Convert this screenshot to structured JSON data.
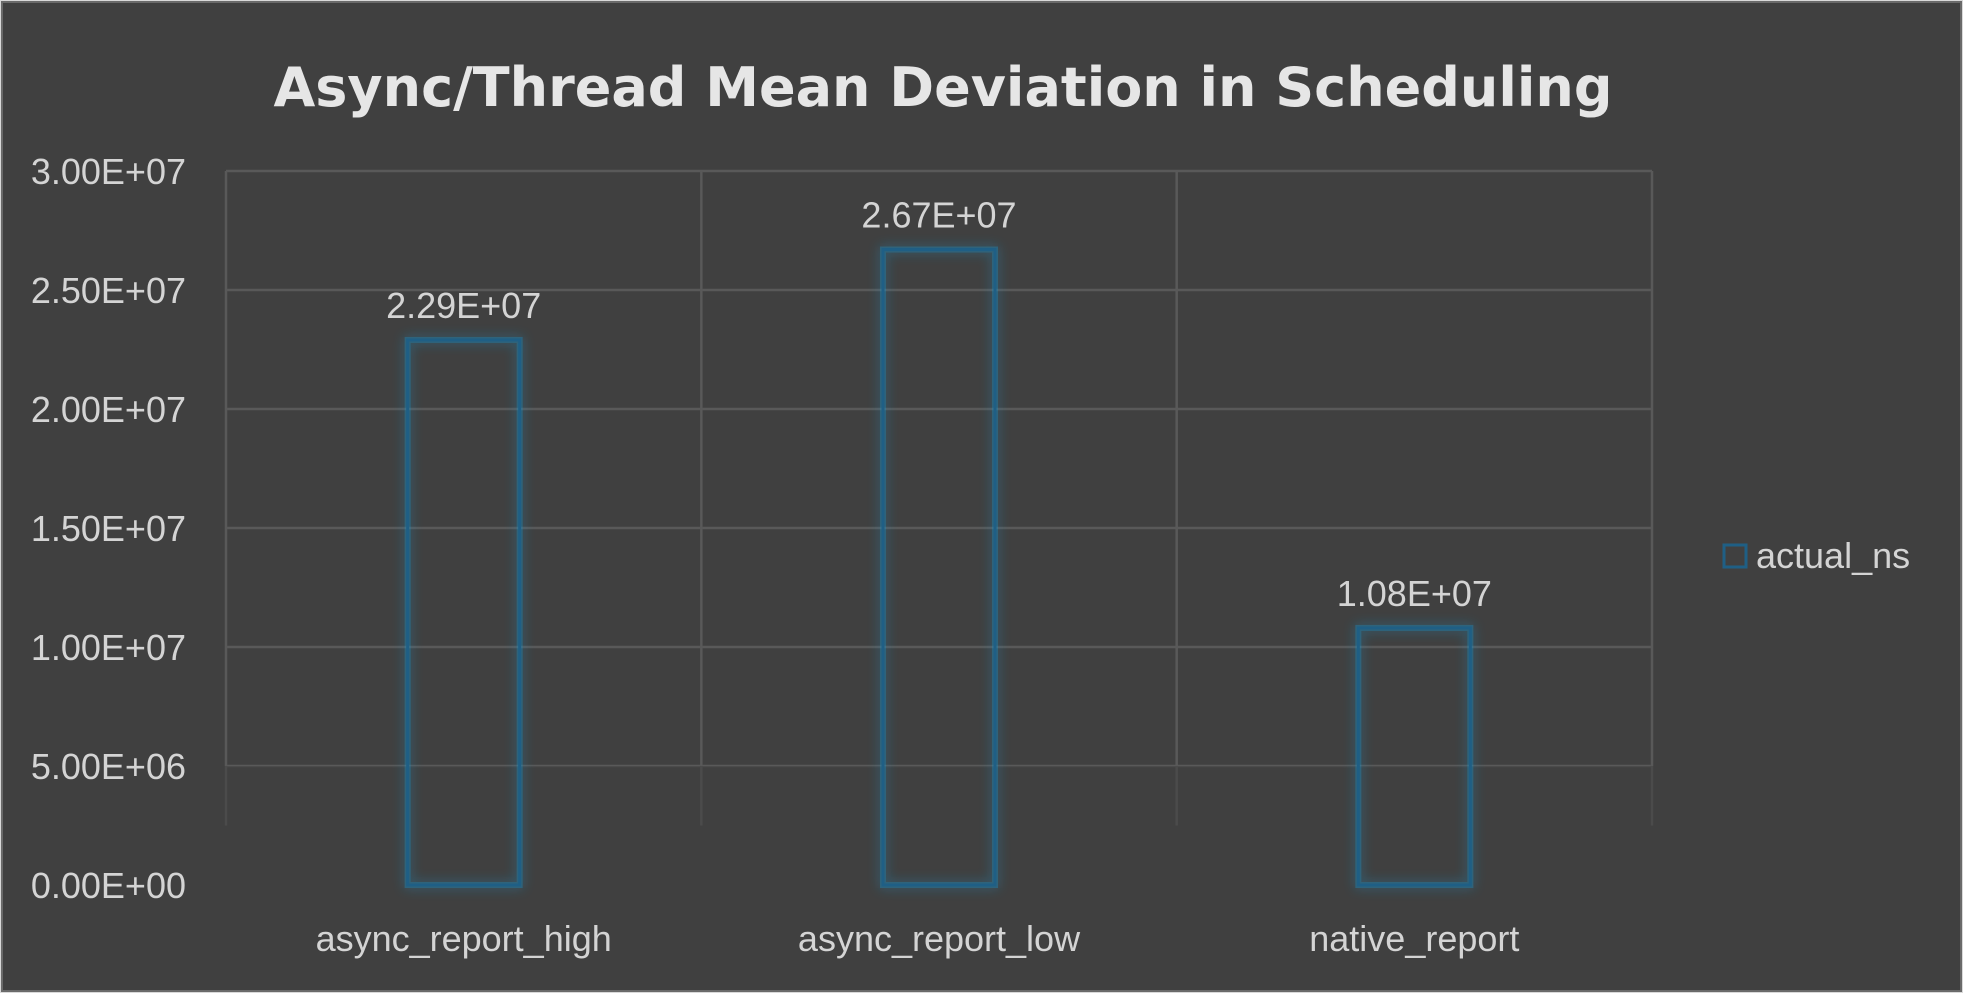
{
  "chart_data": {
    "type": "bar",
    "title": "Async/Thread Mean Deviation in Scheduling",
    "categories": [
      "async_report_high",
      "async_report_low",
      "native_report"
    ],
    "series": [
      {
        "name": "actual_ns",
        "values": [
          22900000,
          26700000,
          10800000
        ],
        "data_labels": [
          "2.29E+07",
          "2.67E+07",
          "1.08E+07"
        ]
      }
    ],
    "ylim": [
      0,
      30000000
    ],
    "yticks": [
      0,
      5000000,
      10000000,
      15000000,
      20000000,
      25000000,
      30000000
    ],
    "ytick_labels": [
      "0.00E+00",
      "5.00E+06",
      "1.00E+07",
      "1.50E+07",
      "2.00E+07",
      "2.50E+07",
      "3.00E+07"
    ],
    "grid": true,
    "legend_position": "right",
    "colors": {
      "background": "#404040",
      "gridline": "#595959",
      "bar_outline": "#1f5f85",
      "bar_glow": "#1a8fc4",
      "text": "#d4d4d4",
      "title": "#e6e6e6"
    }
  }
}
